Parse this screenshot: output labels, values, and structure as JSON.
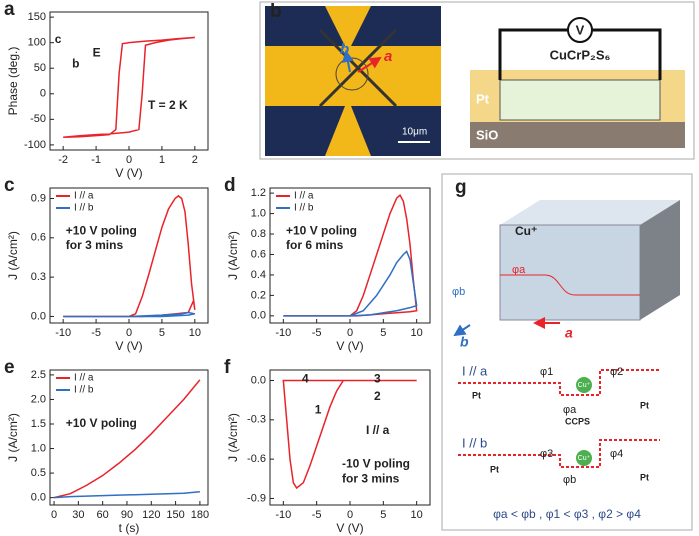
{
  "chart_data": [
    {
      "type": "line",
      "label": "a",
      "xlabel": "V (V)",
      "ylabel": "Phase (deg.)",
      "xlim": [
        -2.4,
        2.4
      ],
      "ylim": [
        -110,
        160
      ],
      "xticks": [
        -2,
        -1,
        0,
        1,
        2
      ],
      "yticks": [
        -100,
        -50,
        0,
        50,
        100,
        150
      ],
      "annotations": [
        "T = 2 K",
        "E",
        "c",
        "b"
      ],
      "series": [
        {
          "color": "#e8232a",
          "x": [
            -2,
            -1.5,
            -1,
            -0.5,
            0,
            0.3,
            0.4,
            0.5,
            0.8,
            1.2,
            1.6,
            2,
            1.5,
            1,
            0.5,
            0,
            -0.2,
            -0.3,
            -0.4,
            -0.6,
            -1,
            -1.5,
            -2
          ],
          "values": [
            -85,
            -82,
            -80,
            -78,
            -75,
            -70,
            0,
            95,
            100,
            105,
            108,
            110,
            108,
            105,
            103,
            100,
            98,
            40,
            -70,
            -80,
            -82,
            -84,
            -85
          ]
        }
      ]
    },
    {
      "type": "line",
      "label": "c",
      "xlabel": "V (V)",
      "ylabel": "J (A/cm²)",
      "xlim": [
        -12,
        12
      ],
      "ylim": [
        -0.05,
        0.98
      ],
      "xticks": [
        -10,
        -5,
        0,
        5,
        10
      ],
      "yticks": [
        {
          "value": 0,
          "label": "0.0"
        },
        0.3,
        0.6,
        0.9
      ],
      "annotations": [
        "+10 V poling",
        "for 3 mins"
      ],
      "series": [
        {
          "name": "I // a",
          "color": "#e8232a",
          "x": [
            -10,
            -5,
            0,
            1,
            2,
            3,
            4,
            5,
            6,
            7,
            7.5,
            8,
            8.5,
            9,
            9.5,
            10,
            9.8,
            9,
            7,
            5,
            2,
            0,
            -5,
            -10
          ],
          "values": [
            0,
            0,
            0,
            0.02,
            0.15,
            0.32,
            0.5,
            0.68,
            0.82,
            0.9,
            0.92,
            0.9,
            0.8,
            0.55,
            0.25,
            0.05,
            0.12,
            0.03,
            0.02,
            0.01,
            0,
            0,
            0,
            0
          ]
        },
        {
          "name": "I // b",
          "color": "#2f6fc4",
          "x": [
            -10,
            -5,
            0,
            5,
            8,
            9,
            10,
            9,
            5,
            0,
            -5,
            -10
          ],
          "values": [
            0,
            0,
            0,
            0.01,
            0.02,
            0.03,
            0.02,
            0.01,
            0,
            0,
            0,
            0
          ]
        }
      ]
    },
    {
      "type": "line",
      "label": "d",
      "xlabel": "V (V)",
      "ylabel": "J (A/cm²)",
      "xlim": [
        -12,
        12
      ],
      "ylim": [
        -0.07,
        1.25
      ],
      "xticks": [
        -10,
        -5,
        0,
        5,
        10
      ],
      "yticks": [
        {
          "value": 0,
          "label": "0.0"
        },
        0.2,
        0.4,
        0.6,
        0.8,
        {
          "value": 1,
          "label": "1.0"
        },
        1.2
      ],
      "annotations": [
        "+10 V poling",
        "for 6 mins"
      ],
      "series": [
        {
          "name": "I // a",
          "color": "#e8232a",
          "x": [
            -10,
            -5,
            0,
            1,
            2,
            3,
            4,
            5,
            6,
            7,
            7.5,
            8,
            8.5,
            9,
            9.5,
            10,
            9,
            7,
            5,
            3,
            1,
            0,
            -5,
            -10
          ],
          "values": [
            0,
            0,
            0,
            0.05,
            0.2,
            0.4,
            0.6,
            0.8,
            1.0,
            1.15,
            1.18,
            1.12,
            0.95,
            0.7,
            0.35,
            0.05,
            0.04,
            0.03,
            0.02,
            0.01,
            0,
            0,
            0,
            0
          ]
        },
        {
          "name": "I // b",
          "color": "#2f6fc4",
          "x": [
            -10,
            -5,
            0,
            2,
            4,
            6,
            7,
            8,
            8.5,
            9,
            10,
            9,
            7,
            5,
            3,
            0,
            -5,
            -10
          ],
          "values": [
            0,
            0,
            0,
            0.05,
            0.2,
            0.4,
            0.52,
            0.6,
            0.63,
            0.55,
            0.1,
            0.08,
            0.05,
            0.03,
            0.01,
            0,
            0,
            0
          ]
        }
      ]
    },
    {
      "type": "line",
      "label": "e",
      "xlabel": "t (s)",
      "ylabel": "J (A/cm²)",
      "xlim": [
        -5,
        190
      ],
      "ylim": [
        -0.15,
        2.6
      ],
      "xticks": [
        0,
        30,
        60,
        90,
        120,
        150,
        180
      ],
      "yticks": [
        {
          "value": 0,
          "label": "0.0"
        },
        0.5,
        {
          "value": 1,
          "label": "1.0"
        },
        1.5,
        {
          "value": 2,
          "label": "2.0"
        },
        2.5
      ],
      "annotations": [
        "+10 V poling"
      ],
      "series": [
        {
          "name": "I // a",
          "color": "#e8232a",
          "x": [
            0,
            20,
            40,
            60,
            80,
            100,
            120,
            140,
            160,
            180
          ],
          "values": [
            0,
            0.08,
            0.25,
            0.45,
            0.7,
            0.98,
            1.3,
            1.65,
            2.0,
            2.4
          ]
        },
        {
          "name": "I // b",
          "color": "#2f6fc4",
          "x": [
            0,
            20,
            40,
            60,
            80,
            100,
            120,
            140,
            160,
            180
          ],
          "values": [
            0,
            0.02,
            0.03,
            0.04,
            0.05,
            0.06,
            0.07,
            0.08,
            0.09,
            0.12
          ]
        }
      ]
    },
    {
      "type": "line",
      "label": "f",
      "xlabel": "V (V)",
      "ylabel": "J (A/cm²)",
      "xlim": [
        -12,
        12
      ],
      "ylim": [
        -0.95,
        0.08
      ],
      "xticks": [
        -10,
        -5,
        0,
        5,
        10
      ],
      "yticks": [
        {
          "value": 0,
          "label": "0.0"
        },
        -0.3,
        -0.6,
        -0.9
      ],
      "annotations": [
        "4",
        "3",
        "2",
        "1",
        "I // a",
        "-10 V poling",
        "for 3 mins"
      ],
      "series": [
        {
          "color": "#e8232a",
          "x": [
            10,
            5,
            0,
            -5,
            -10,
            -9.5,
            -9,
            -8.5,
            -8,
            -7,
            -6,
            -5,
            -4,
            -3,
            -2,
            -1,
            0,
            5,
            10
          ],
          "values": [
            0,
            0,
            0,
            0,
            0,
            -0.3,
            -0.6,
            -0.78,
            -0.82,
            -0.78,
            -0.65,
            -0.5,
            -0.35,
            -0.2,
            -0.08,
            0,
            0,
            0,
            0
          ]
        }
      ]
    }
  ],
  "panel_b": {
    "label": "b",
    "texts": [
      "b",
      "a",
      "10μm",
      "V",
      "CuCrP₂S₆",
      "Pt",
      "SiO"
    ]
  },
  "panel_g": {
    "label": "g",
    "texts": [
      "Cu⁺",
      "φa",
      "φb",
      "a",
      "b",
      "I // a",
      "Pt",
      "φ1",
      "φ2",
      "φa",
      "Cu⁺",
      "CCPS",
      "Pt",
      "I // b",
      "Pt",
      "φ3",
      "φ4",
      "φb",
      "Cu⁺",
      "Pt",
      "φa < φb , φ1 < φ3 , φ2 > φ4"
    ]
  }
}
